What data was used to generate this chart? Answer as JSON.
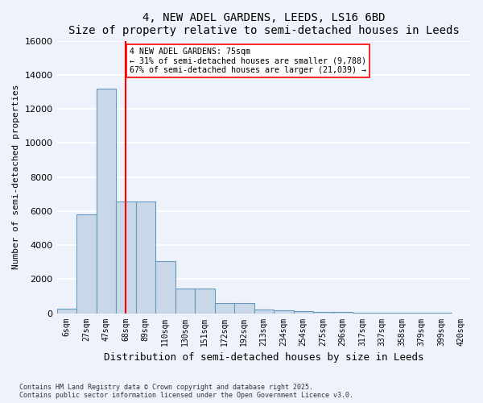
{
  "title": "4, NEW ADEL GARDENS, LEEDS, LS16 6BD",
  "subtitle": "Size of property relative to semi-detached houses in Leeds",
  "xlabel": "Distribution of semi-detached houses by size in Leeds",
  "ylabel": "Number of semi-detached properties",
  "bin_labels": [
    "6sqm",
    "27sqm",
    "47sqm",
    "68sqm",
    "89sqm",
    "110sqm",
    "130sqm",
    "151sqm",
    "172sqm",
    "192sqm",
    "213sqm",
    "234sqm",
    "254sqm",
    "275sqm",
    "296sqm",
    "317sqm",
    "337sqm",
    "358sqm",
    "379sqm",
    "399sqm",
    "420sqm"
  ],
  "bar_values": [
    270,
    5800,
    13200,
    6550,
    6550,
    3050,
    1450,
    1450,
    600,
    600,
    220,
    180,
    100,
    70,
    50,
    30,
    20,
    10,
    5,
    5,
    2
  ],
  "bar_color": "#c8d8e8",
  "bar_edge_color": "#6699bb",
  "red_line_index": 3,
  "annotation_text_line1": "4 NEW ADEL GARDENS: 75sqm",
  "annotation_text_line2": "← 31% of semi-detached houses are smaller (9,788)",
  "annotation_text_line3": "67% of semi-detached houses are larger (21,039) →",
  "ylim": [
    0,
    16000
  ],
  "yticks": [
    0,
    2000,
    4000,
    6000,
    8000,
    10000,
    12000,
    14000,
    16000
  ],
  "footnote1": "Contains HM Land Registry data © Crown copyright and database right 2025.",
  "footnote2": "Contains public sector information licensed under the Open Government Licence v3.0.",
  "background_color": "#eef2fb",
  "grid_color": "#ffffff"
}
